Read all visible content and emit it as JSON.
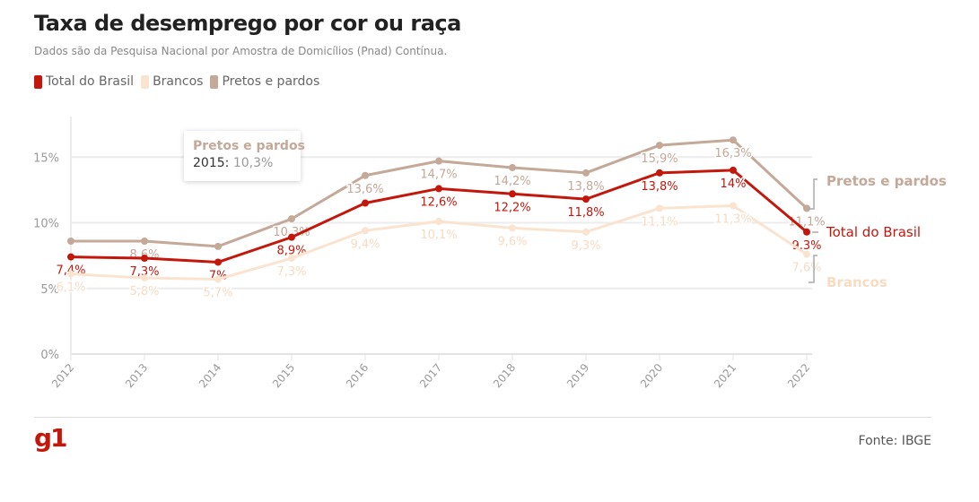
{
  "title": "Taxa de desemprego por cor ou raça",
  "subtitle": "Dados são da Pesquisa Nacional por Amostra de Domicílios (Pnad) Contínua.",
  "legend": [
    {
      "label": "Total do Brasil",
      "color": "#c4170c"
    },
    {
      "label": "Brancos",
      "color": "#fae4cf"
    },
    {
      "label": "Pretos e pardos",
      "color": "#c4a898"
    }
  ],
  "tooltip": {
    "series": "Pretos e pardos",
    "year": "2015:",
    "value": "10,3%"
  },
  "source": "Fonte: IBGE",
  "logo": "g1",
  "chart_data": {
    "type": "line",
    "x": [
      "2012",
      "2013",
      "2014",
      "2015",
      "2016",
      "2017",
      "2018",
      "2019",
      "2020",
      "2021",
      "2022"
    ],
    "ylim": [
      0,
      17
    ],
    "yticks": [
      {
        "value": 0,
        "label": "0%"
      },
      {
        "value": 5,
        "label": "5%"
      },
      {
        "value": 10,
        "label": "10%"
      },
      {
        "value": 15,
        "label": "15%"
      }
    ],
    "grid": true,
    "legend_position": "top-left",
    "series": [
      {
        "name": "Pretos e pardos",
        "color": "#c4a898",
        "values": [
          8.6,
          8.6,
          8.2,
          10.3,
          13.6,
          14.7,
          14.2,
          13.8,
          15.9,
          16.3,
          11.1
        ],
        "labels": [
          null,
          "8,6%",
          null,
          "10,3%",
          "13,6%",
          "14,7%",
          "14,2%",
          "13,8%",
          "15,9%",
          "16,3%",
          "11,1%"
        ]
      },
      {
        "name": "Total do Brasil",
        "color": "#c4170c",
        "values": [
          7.4,
          7.3,
          7.0,
          8.9,
          11.5,
          12.6,
          12.2,
          11.8,
          13.8,
          14.0,
          9.3
        ],
        "labels": [
          "7,4%",
          "7,3%",
          "7%",
          "8,9%",
          null,
          "12,6%",
          "12,2%",
          "11,8%",
          "13,8%",
          "14%",
          "9,3%"
        ]
      },
      {
        "name": "Brancos",
        "color": "#fae4cf",
        "values": [
          6.1,
          5.8,
          5.7,
          7.3,
          9.4,
          10.1,
          9.6,
          9.3,
          11.1,
          11.3,
          7.6
        ],
        "labels": [
          "6,1%",
          "5,8%",
          "5,7%",
          "7,3%",
          "9,4%",
          "10,1%",
          "9,6%",
          "9,3%",
          "11,1%",
          "11,3%",
          "7,6%"
        ]
      }
    ]
  }
}
